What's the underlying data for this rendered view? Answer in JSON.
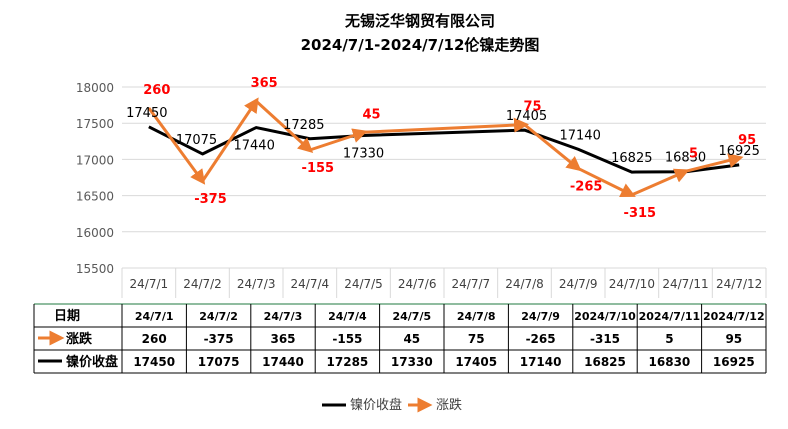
{
  "chart_data": {
    "type": "line",
    "title": "无锡泛华钢贸有限公司",
    "subtitle": "2024/7/1-2024/7/12伦镍走势图",
    "categories": [
      "24/7/1",
      "24/7/2",
      "24/7/3",
      "24/7/4",
      "24/7/5",
      "24/7/6",
      "24/7/7",
      "24/7/8",
      "24/7/9",
      "24/7/10",
      "24/7/11",
      "24/7/12"
    ],
    "ylim": [
      15500,
      18000
    ],
    "yticks": [
      15500,
      16000,
      16500,
      17000,
      17500,
      18000
    ],
    "grid": true,
    "legend_position": "bottom-right",
    "series": [
      {
        "name": "镍价收盘",
        "color": "#000000",
        "values": [
          17450,
          17075,
          17440,
          17285,
          17330,
          null,
          null,
          17405,
          17140,
          16825,
          16830,
          16925
        ]
      },
      {
        "name": "涨跌",
        "color": "#ed7d31",
        "values": [
          260,
          -375,
          365,
          -155,
          45,
          null,
          null,
          75,
          -265,
          -315,
          5,
          95
        ]
      }
    ],
    "change_label_color": "#ff0000",
    "table": {
      "header_label": "日期",
      "dates": [
        "24/7/1",
        "24/7/2",
        "24/7/3",
        "24/7/4",
        "24/7/5",
        "24/7/8",
        "24/7/9",
        "2024/7/10",
        "2024/7/11",
        "2024/7/12"
      ],
      "rows": [
        {
          "label": "涨跌",
          "values": [
            "260",
            "-375",
            "365",
            "-155",
            "45",
            "75",
            "-265",
            "-315",
            "5",
            "95"
          ]
        },
        {
          "label": "镍价收盘",
          "values": [
            "17450",
            "17075",
            "17440",
            "17285",
            "17330",
            "17405",
            "17140",
            "16825",
            "16830",
            "16925"
          ]
        }
      ]
    }
  }
}
